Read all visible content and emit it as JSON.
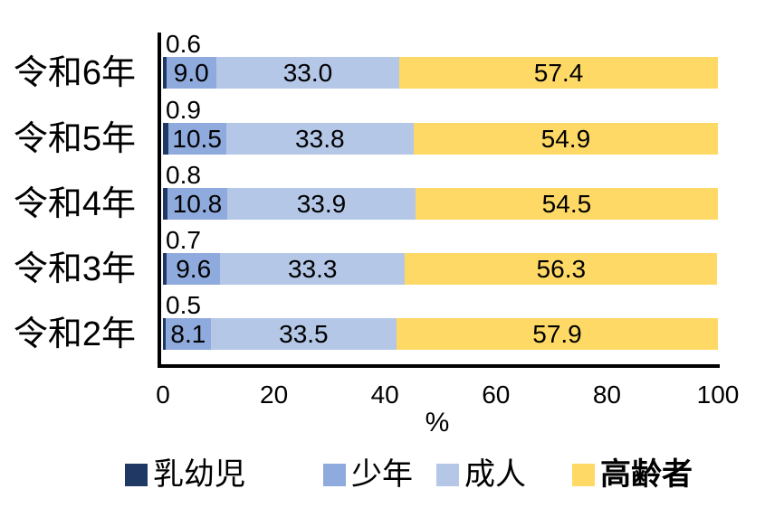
{
  "chart_data": {
    "type": "bar",
    "orientation": "horizontal",
    "stacked": true,
    "title": "",
    "xlabel": "%",
    "xlim": [
      0,
      100
    ],
    "x_ticks": [
      "0",
      "20",
      "40",
      "60",
      "80",
      "100"
    ],
    "grid": false,
    "legend_position": "bottom",
    "categories": [
      "令和6年",
      "令和5年",
      "令和4年",
      "令和3年",
      "令和2年"
    ],
    "series": [
      {
        "name": "乳幼児",
        "color": "#1F3864",
        "values": [
          0.6,
          0.9,
          0.8,
          0.7,
          0.5
        ],
        "label_position": "above-bar-left",
        "legend_bold": false
      },
      {
        "name": "少年",
        "color": "#8FAADC",
        "values": [
          9.0,
          10.5,
          10.8,
          9.6,
          8.1
        ],
        "label_position": "inside-center",
        "legend_bold": false
      },
      {
        "name": "成人",
        "color": "#B4C7E7",
        "values": [
          33.0,
          33.8,
          33.9,
          33.3,
          33.5
        ],
        "label_position": "inside-center",
        "legend_bold": false
      },
      {
        "name": "高齢者",
        "color": "#FFD966",
        "values": [
          57.4,
          54.9,
          54.5,
          56.3,
          57.9
        ],
        "label_position": "inside-center",
        "legend_bold": true
      }
    ],
    "colors": {
      "axis": "#000000",
      "label_text": "#000000",
      "background": "#ffffff"
    }
  }
}
